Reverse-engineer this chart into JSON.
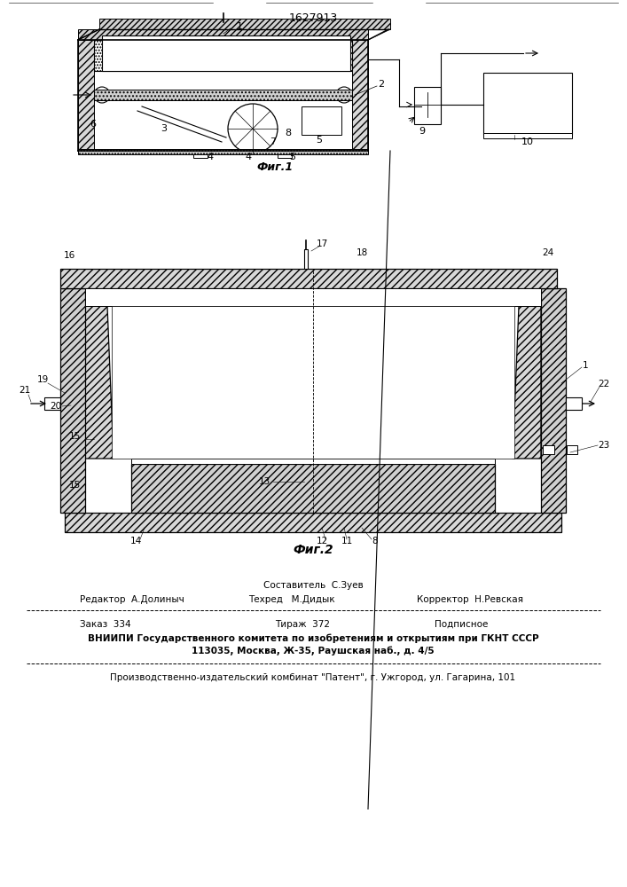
{
  "patent_number": "1627913",
  "fig1_caption": "Фиг.1",
  "fig2_caption": "Фиг.2",
  "footer_sestavitel": "Составитель  С.Зуев",
  "footer_redaktor": "Редактор  А.Долиныч",
  "footer_tehred": "Техред   М.Дидык",
  "footer_korrektor": "Корректор  Н.Ревская",
  "footer_order": "Заказ  334",
  "footer_tirazh": "Тираж  372",
  "footer_podp": "Подписное",
  "footer_vniip1": "ВНИИПИ Государственного комитета по изобретениям и открытиям при ГКНТ СССР",
  "footer_vniip2": "113035, Москва, Ж-35, Раушская наб., д. 4/5",
  "footer_prod": "Производственно-издательский комбинат \"Патент\", г. Ужгород, ул. Гагарина, 101",
  "bg_color": "#ffffff"
}
